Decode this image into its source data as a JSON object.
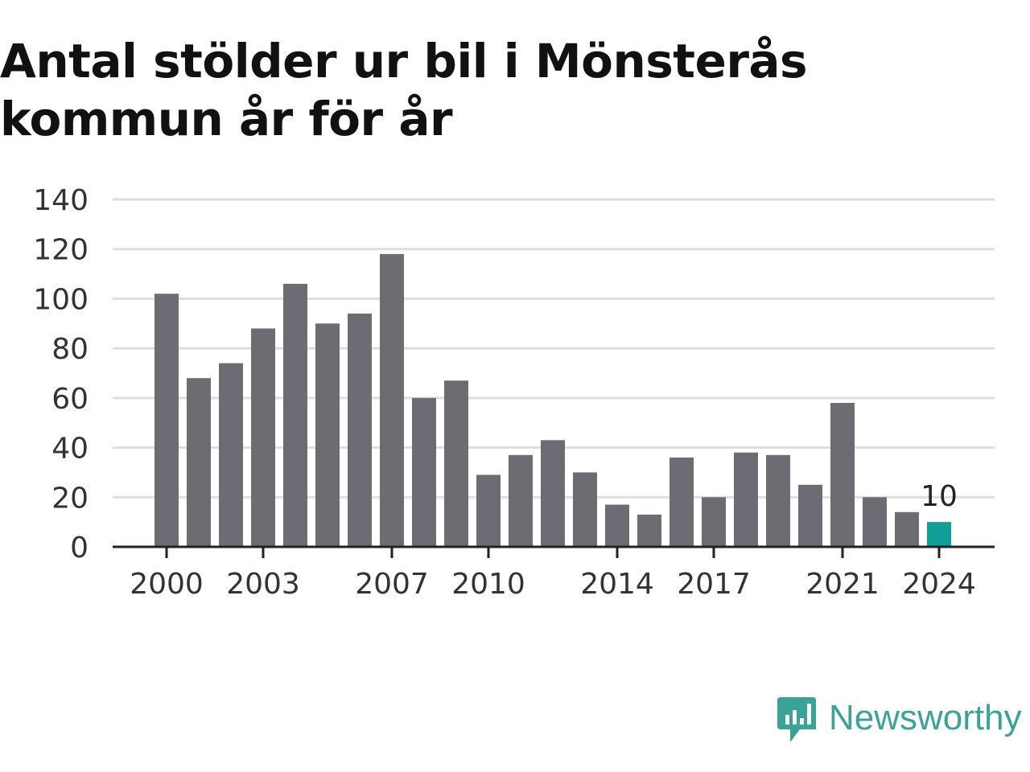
{
  "title": "Antal stölder ur bil i Mönsterås kommun år för år",
  "brand": {
    "name": "Newsworthy",
    "icon": "newsworthy-logo-icon",
    "color": "#3aa398"
  },
  "colors": {
    "bar": "#6d6c72",
    "highlight": "#0fa098",
    "grid": "#dedede",
    "axis": "#222222",
    "text": "#333333"
  },
  "chart_data": {
    "type": "bar",
    "title": "Antal stölder ur bil i Mönsterås kommun år för år",
    "xlabel": "",
    "ylabel": "",
    "ylim": [
      0,
      140
    ],
    "yticks": [
      0,
      20,
      40,
      60,
      80,
      100,
      120,
      140
    ],
    "grid": true,
    "categories": [
      "2000",
      "2001",
      "2002",
      "2003",
      "2004",
      "2005",
      "2006",
      "2007",
      "2008",
      "2009",
      "2010",
      "2011",
      "2012",
      "2013",
      "2014",
      "2015",
      "2016",
      "2017",
      "2018",
      "2019",
      "2020",
      "2021",
      "2022",
      "2023",
      "2024"
    ],
    "x_tick_labels": [
      "2000",
      "2003",
      "2007",
      "2010",
      "2014",
      "2017",
      "2021",
      "2024"
    ],
    "values": [
      102,
      68,
      74,
      88,
      106,
      90,
      94,
      118,
      60,
      67,
      29,
      37,
      43,
      30,
      17,
      13,
      36,
      20,
      38,
      37,
      25,
      58,
      20,
      14,
      10
    ],
    "highlight": {
      "category": "2024",
      "label": "10"
    }
  }
}
